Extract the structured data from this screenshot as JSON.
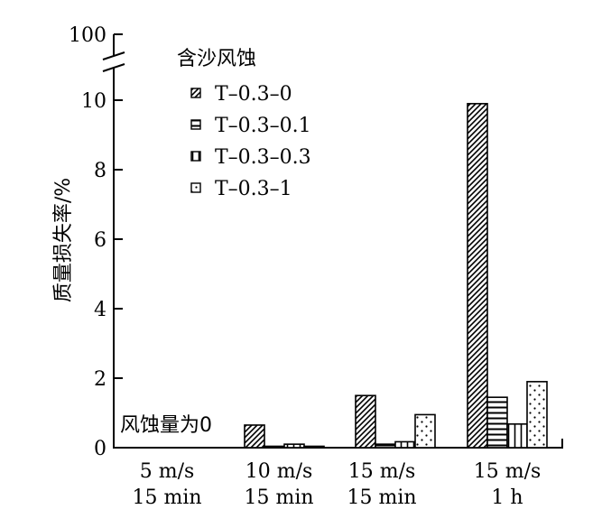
{
  "chart_data": {
    "type": "bar",
    "ylabel": "质量损失率/%",
    "y_ticks": [
      "0",
      "2",
      "4",
      "6",
      "8",
      "10"
    ],
    "y_break_label": "100",
    "ylim": [
      0,
      10
    ],
    "y_axis_break": true,
    "categories": [
      [
        "5 m/s",
        "15 min"
      ],
      [
        "10 m/s",
        "15 min"
      ],
      [
        "15 m/s",
        "15 min"
      ],
      [
        "15 m/s",
        "1 h"
      ]
    ],
    "legend_title": "含沙风蚀",
    "legend_position": "top-left",
    "series": [
      {
        "name": "T–0.3–0",
        "pattern": "diagonal",
        "values": [
          0,
          0.65,
          1.5,
          9.9
        ]
      },
      {
        "name": "T–0.3–0.1",
        "pattern": "horizontal",
        "values": [
          0,
          0.04,
          0.1,
          1.45
        ]
      },
      {
        "name": "T–0.3–0.3",
        "pattern": "vertical",
        "values": [
          0,
          0.1,
          0.17,
          0.68
        ]
      },
      {
        "name": "T–0.3–1",
        "pattern": "dots",
        "values": [
          0,
          0.04,
          0.95,
          1.9
        ]
      }
    ],
    "annotations": [
      "风蚀量为0"
    ]
  }
}
